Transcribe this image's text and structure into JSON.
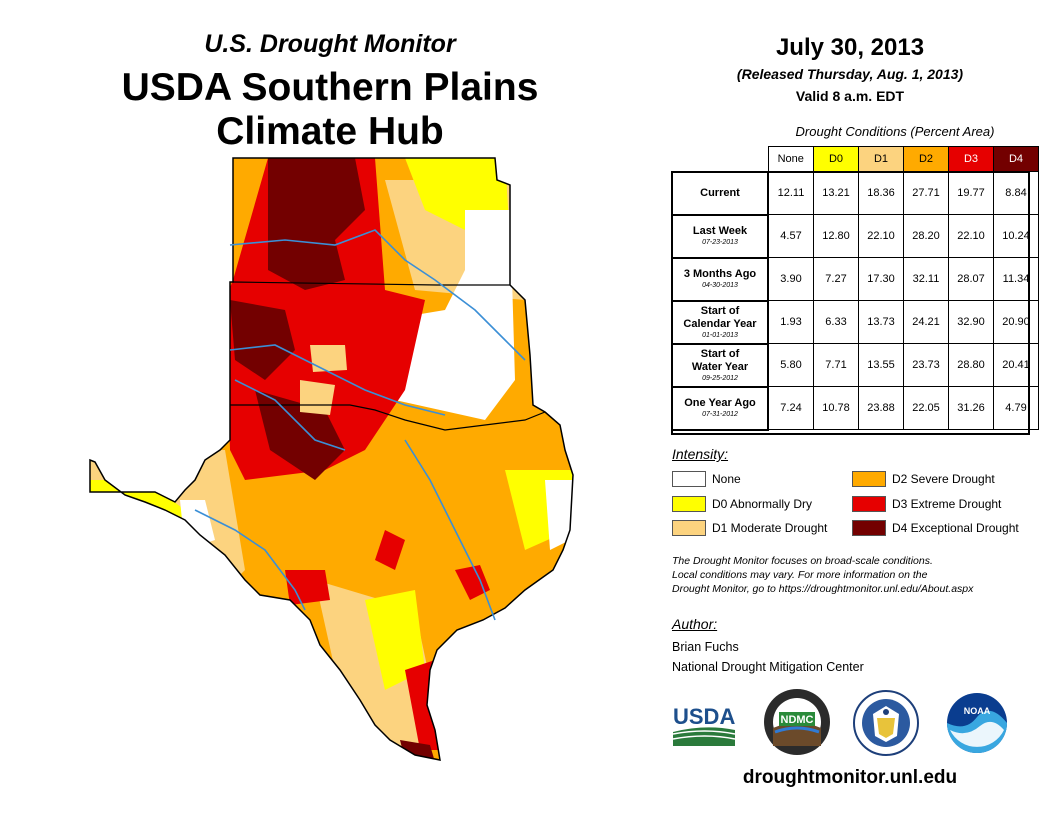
{
  "header": {
    "subtitle": "U.S. Drought Monitor",
    "title_line1": "USDA Southern Plains",
    "title_line2": "Climate Hub"
  },
  "report": {
    "date": "July 30, 2013",
    "released": "(Released Thursday, Aug. 1, 2013)",
    "valid": "Valid 8 a.m. EDT"
  },
  "table": {
    "title": "Drought Conditions (Percent Area)",
    "columns": [
      "None",
      "D0",
      "D1",
      "D2",
      "D3",
      "D4"
    ],
    "column_colors": [
      "#ffffff",
      "#ffff00",
      "#fcd37f",
      "#ffaa00",
      "#e60000",
      "#730000"
    ],
    "rows": [
      {
        "label": "Current",
        "label2": "",
        "date": "",
        "values": [
          "12.11",
          "13.21",
          "18.36",
          "27.71",
          "19.77",
          "8.84"
        ]
      },
      {
        "label": "Last Week",
        "label2": "",
        "date": "07-23-2013",
        "values": [
          "4.57",
          "12.80",
          "22.10",
          "28.20",
          "22.10",
          "10.24"
        ]
      },
      {
        "label": "3 Months Ago",
        "label2": "",
        "date": "04-30-2013",
        "values": [
          "3.90",
          "7.27",
          "17.30",
          "32.11",
          "28.07",
          "11.34"
        ]
      },
      {
        "label": "Start of",
        "label2": "Calendar Year",
        "date": "01-01-2013",
        "values": [
          "1.93",
          "6.33",
          "13.73",
          "24.21",
          "32.90",
          "20.90"
        ]
      },
      {
        "label": "Start of",
        "label2": "Water Year",
        "date": "09-25-2012",
        "values": [
          "5.80",
          "7.71",
          "13.55",
          "23.73",
          "28.80",
          "20.41"
        ]
      },
      {
        "label": "One Year Ago",
        "label2": "",
        "date": "07-31-2012",
        "values": [
          "7.24",
          "10.78",
          "23.88",
          "22.05",
          "31.26",
          "4.79"
        ]
      }
    ]
  },
  "legend": {
    "title": "Intensity:",
    "items": [
      {
        "label": "None",
        "color": "#ffffff"
      },
      {
        "label": "D0 Abnormally Dry",
        "color": "#ffff00"
      },
      {
        "label": "D1 Moderate Drought",
        "color": "#fcd37f"
      },
      {
        "label": "D2 Severe Drought",
        "color": "#ffaa00"
      },
      {
        "label": "D3 Extreme Drought",
        "color": "#e60000"
      },
      {
        "label": "D4 Exceptional Drought",
        "color": "#730000"
      }
    ]
  },
  "note": {
    "line1": "The Drought Monitor focuses on broad-scale conditions.",
    "line2": "Local conditions may vary. For more information on the",
    "line3": "Drought Monitor, go to https://droughtmonitor.unl.edu/About.aspx"
  },
  "author": {
    "title": "Author:",
    "name": "Brian Fuchs",
    "org": "National Drought Mitigation Center"
  },
  "logos": {
    "usda": "USDA",
    "ndmc": "NDMC",
    "noaa": "NOAA"
  },
  "footer": {
    "url": "droughtmonitor.unl.edu"
  }
}
